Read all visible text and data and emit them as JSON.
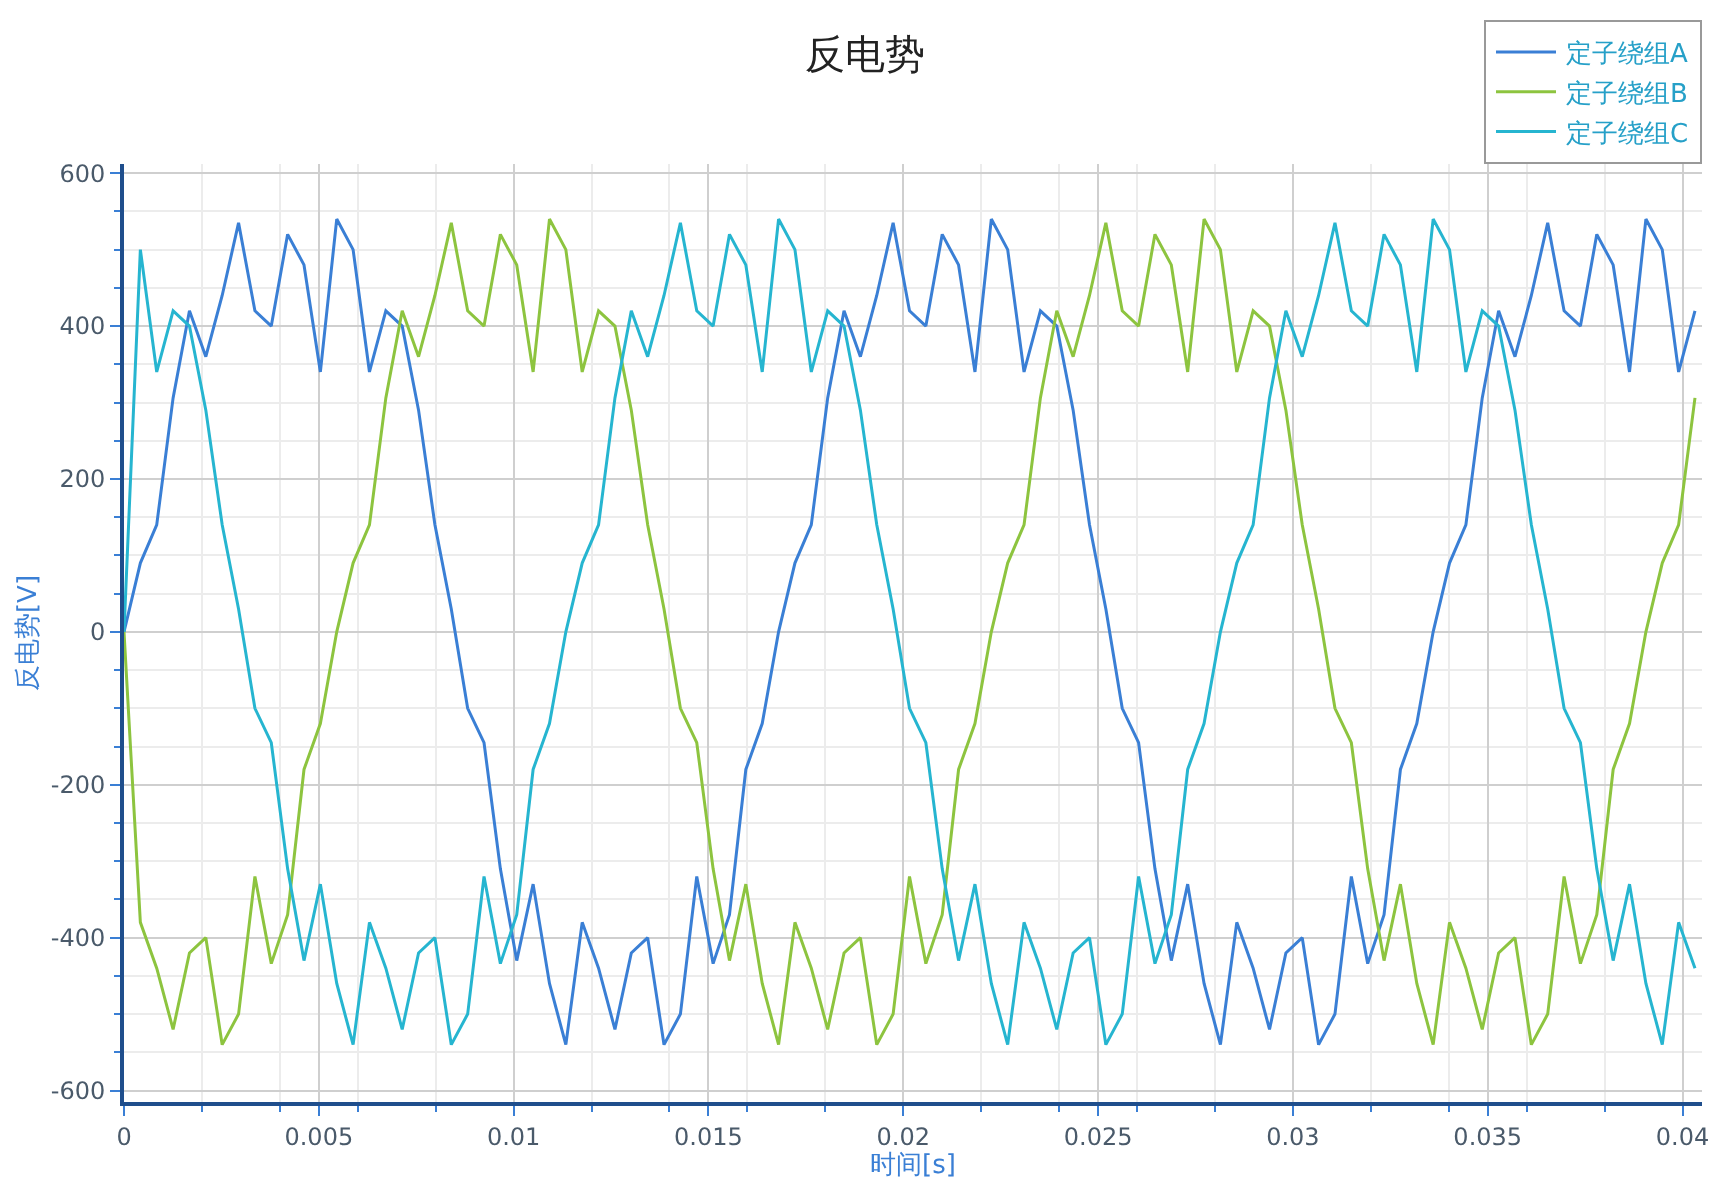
{
  "chart_data": {
    "type": "line",
    "title": "反电势",
    "xlabel": "时间[s]",
    "ylabel": "反电势[V]",
    "x": [
      0,
      0.00042,
      0.00084,
      0.00126,
      0.00168,
      0.0021,
      0.00252,
      0.00294,
      0.00336,
      0.00378,
      0.0042,
      0.00462,
      0.00504,
      0.00546,
      0.00588,
      0.0063,
      0.00672,
      0.00714,
      0.00756,
      0.00798,
      0.0084,
      0.00882,
      0.00924,
      0.00966,
      0.01008,
      0.0105,
      0.01092,
      0.01134,
      0.01176,
      0.01218,
      0.0126,
      0.01302,
      0.01344,
      0.01386,
      0.01428,
      0.0147,
      0.01512,
      0.01554,
      0.01596,
      0.01638,
      0.0168,
      0.01722,
      0.01764,
      0.01806,
      0.01848,
      0.0189,
      0.01932,
      0.01974,
      0.02016,
      0.02058,
      0.021,
      0.02142,
      0.02184,
      0.02226,
      0.02268,
      0.0231,
      0.02352,
      0.02394,
      0.02436,
      0.02478,
      0.0252,
      0.02562,
      0.02604,
      0.02646,
      0.02688,
      0.0273,
      0.02772,
      0.02814,
      0.02856,
      0.02898,
      0.0294,
      0.02982,
      0.03024,
      0.03066,
      0.03108,
      0.0315,
      0.03192,
      0.03234,
      0.03276,
      0.03318,
      0.0336,
      0.03402,
      0.03444,
      0.03486,
      0.03528,
      0.0357,
      0.03612,
      0.03654,
      0.03696,
      0.03738,
      0.0378,
      0.03822,
      0.03864,
      0.03906,
      0.03948,
      0.0399,
      0.04032
    ],
    "series": [
      {
        "name": "定子绕组A",
        "color": "#3a7fd5",
        "values": [
          0,
          90,
          140,
          306,
          420,
          360,
          440,
          535,
          420,
          400,
          520,
          480,
          340,
          540,
          500,
          340,
          420,
          400,
          290,
          140,
          30,
          -100,
          -145,
          -310,
          -430,
          -330,
          -460,
          -540,
          -380,
          -440,
          -520,
          -420,
          -400,
          -540,
          -500,
          -320,
          -434,
          -370,
          -180,
          -120,
          0,
          90,
          140,
          306,
          420,
          360,
          440,
          535,
          420,
          400,
          520,
          480,
          340,
          540,
          500,
          340,
          420,
          400,
          290,
          140,
          30,
          -100,
          -145,
          -310,
          -430,
          -330,
          -460,
          -540,
          -380,
          -440,
          -520,
          -420,
          -400,
          -540,
          -500,
          -320,
          -434,
          -370,
          -180,
          -120,
          0,
          90,
          140,
          306,
          420,
          360,
          440,
          535,
          420,
          400,
          520,
          480,
          340,
          540,
          500,
          340,
          420
        ]
      },
      {
        "name": "定子绕组B",
        "color": "#8dc43f",
        "values": [
          0,
          -380,
          -440,
          -520,
          -420,
          -400,
          -540,
          -500,
          -320,
          -434,
          -370,
          -180,
          -120,
          0,
          90,
          140,
          306,
          420,
          360,
          440,
          535,
          420,
          400,
          520,
          480,
          340,
          540,
          500,
          340,
          420,
          400,
          290,
          140,
          30,
          -100,
          -145,
          -310,
          -430,
          -330,
          -460,
          -540,
          -380,
          -440,
          -520,
          -420,
          -400,
          -540,
          -500,
          -320,
          -434,
          -370,
          -180,
          -120,
          0,
          90,
          140,
          306,
          420,
          360,
          440,
          535,
          420,
          400,
          520,
          480,
          340,
          540,
          500,
          340,
          420,
          400,
          290,
          140,
          30,
          -100,
          -145,
          -310,
          -430,
          -330,
          -460,
          -540,
          -380,
          -440,
          -520,
          -420,
          -400,
          -540,
          -500,
          -320,
          -434,
          -370,
          -180,
          -120,
          0,
          90,
          140,
          306
        ]
      },
      {
        "name": "定子绕组C",
        "color": "#26b5d0",
        "values": [
          0,
          500,
          340,
          420,
          400,
          290,
          140,
          30,
          -100,
          -145,
          -310,
          -430,
          -330,
          -460,
          -540,
          -380,
          -440,
          -520,
          -420,
          -400,
          -540,
          -500,
          -320,
          -434,
          -370,
          -180,
          -120,
          0,
          90,
          140,
          306,
          420,
          360,
          440,
          535,
          420,
          400,
          520,
          480,
          340,
          540,
          500,
          340,
          420,
          400,
          290,
          140,
          30,
          -100,
          -145,
          -310,
          -430,
          -330,
          -460,
          -540,
          -380,
          -440,
          -520,
          -420,
          -400,
          -540,
          -500,
          -320,
          -434,
          -370,
          -180,
          -120,
          0,
          90,
          140,
          306,
          420,
          360,
          440,
          535,
          420,
          400,
          520,
          480,
          340,
          540,
          500,
          340,
          420,
          400,
          290,
          140,
          30,
          -100,
          -145,
          -310,
          -430,
          -330,
          -460,
          -540,
          -380,
          -440
        ]
      }
    ],
    "xlim": [
      0,
      0.0405
    ],
    "xticks": [
      0,
      0.005,
      0.01,
      0.015,
      0.02,
      0.025,
      0.03,
      0.035,
      0.04
    ],
    "ylim": [
      -615,
      612
    ],
    "yticks": [
      -600,
      -400,
      -200,
      0,
      200,
      400,
      600
    ],
    "grid": true,
    "legend": "top right",
    "marker": "none",
    "line_style": "solid"
  }
}
